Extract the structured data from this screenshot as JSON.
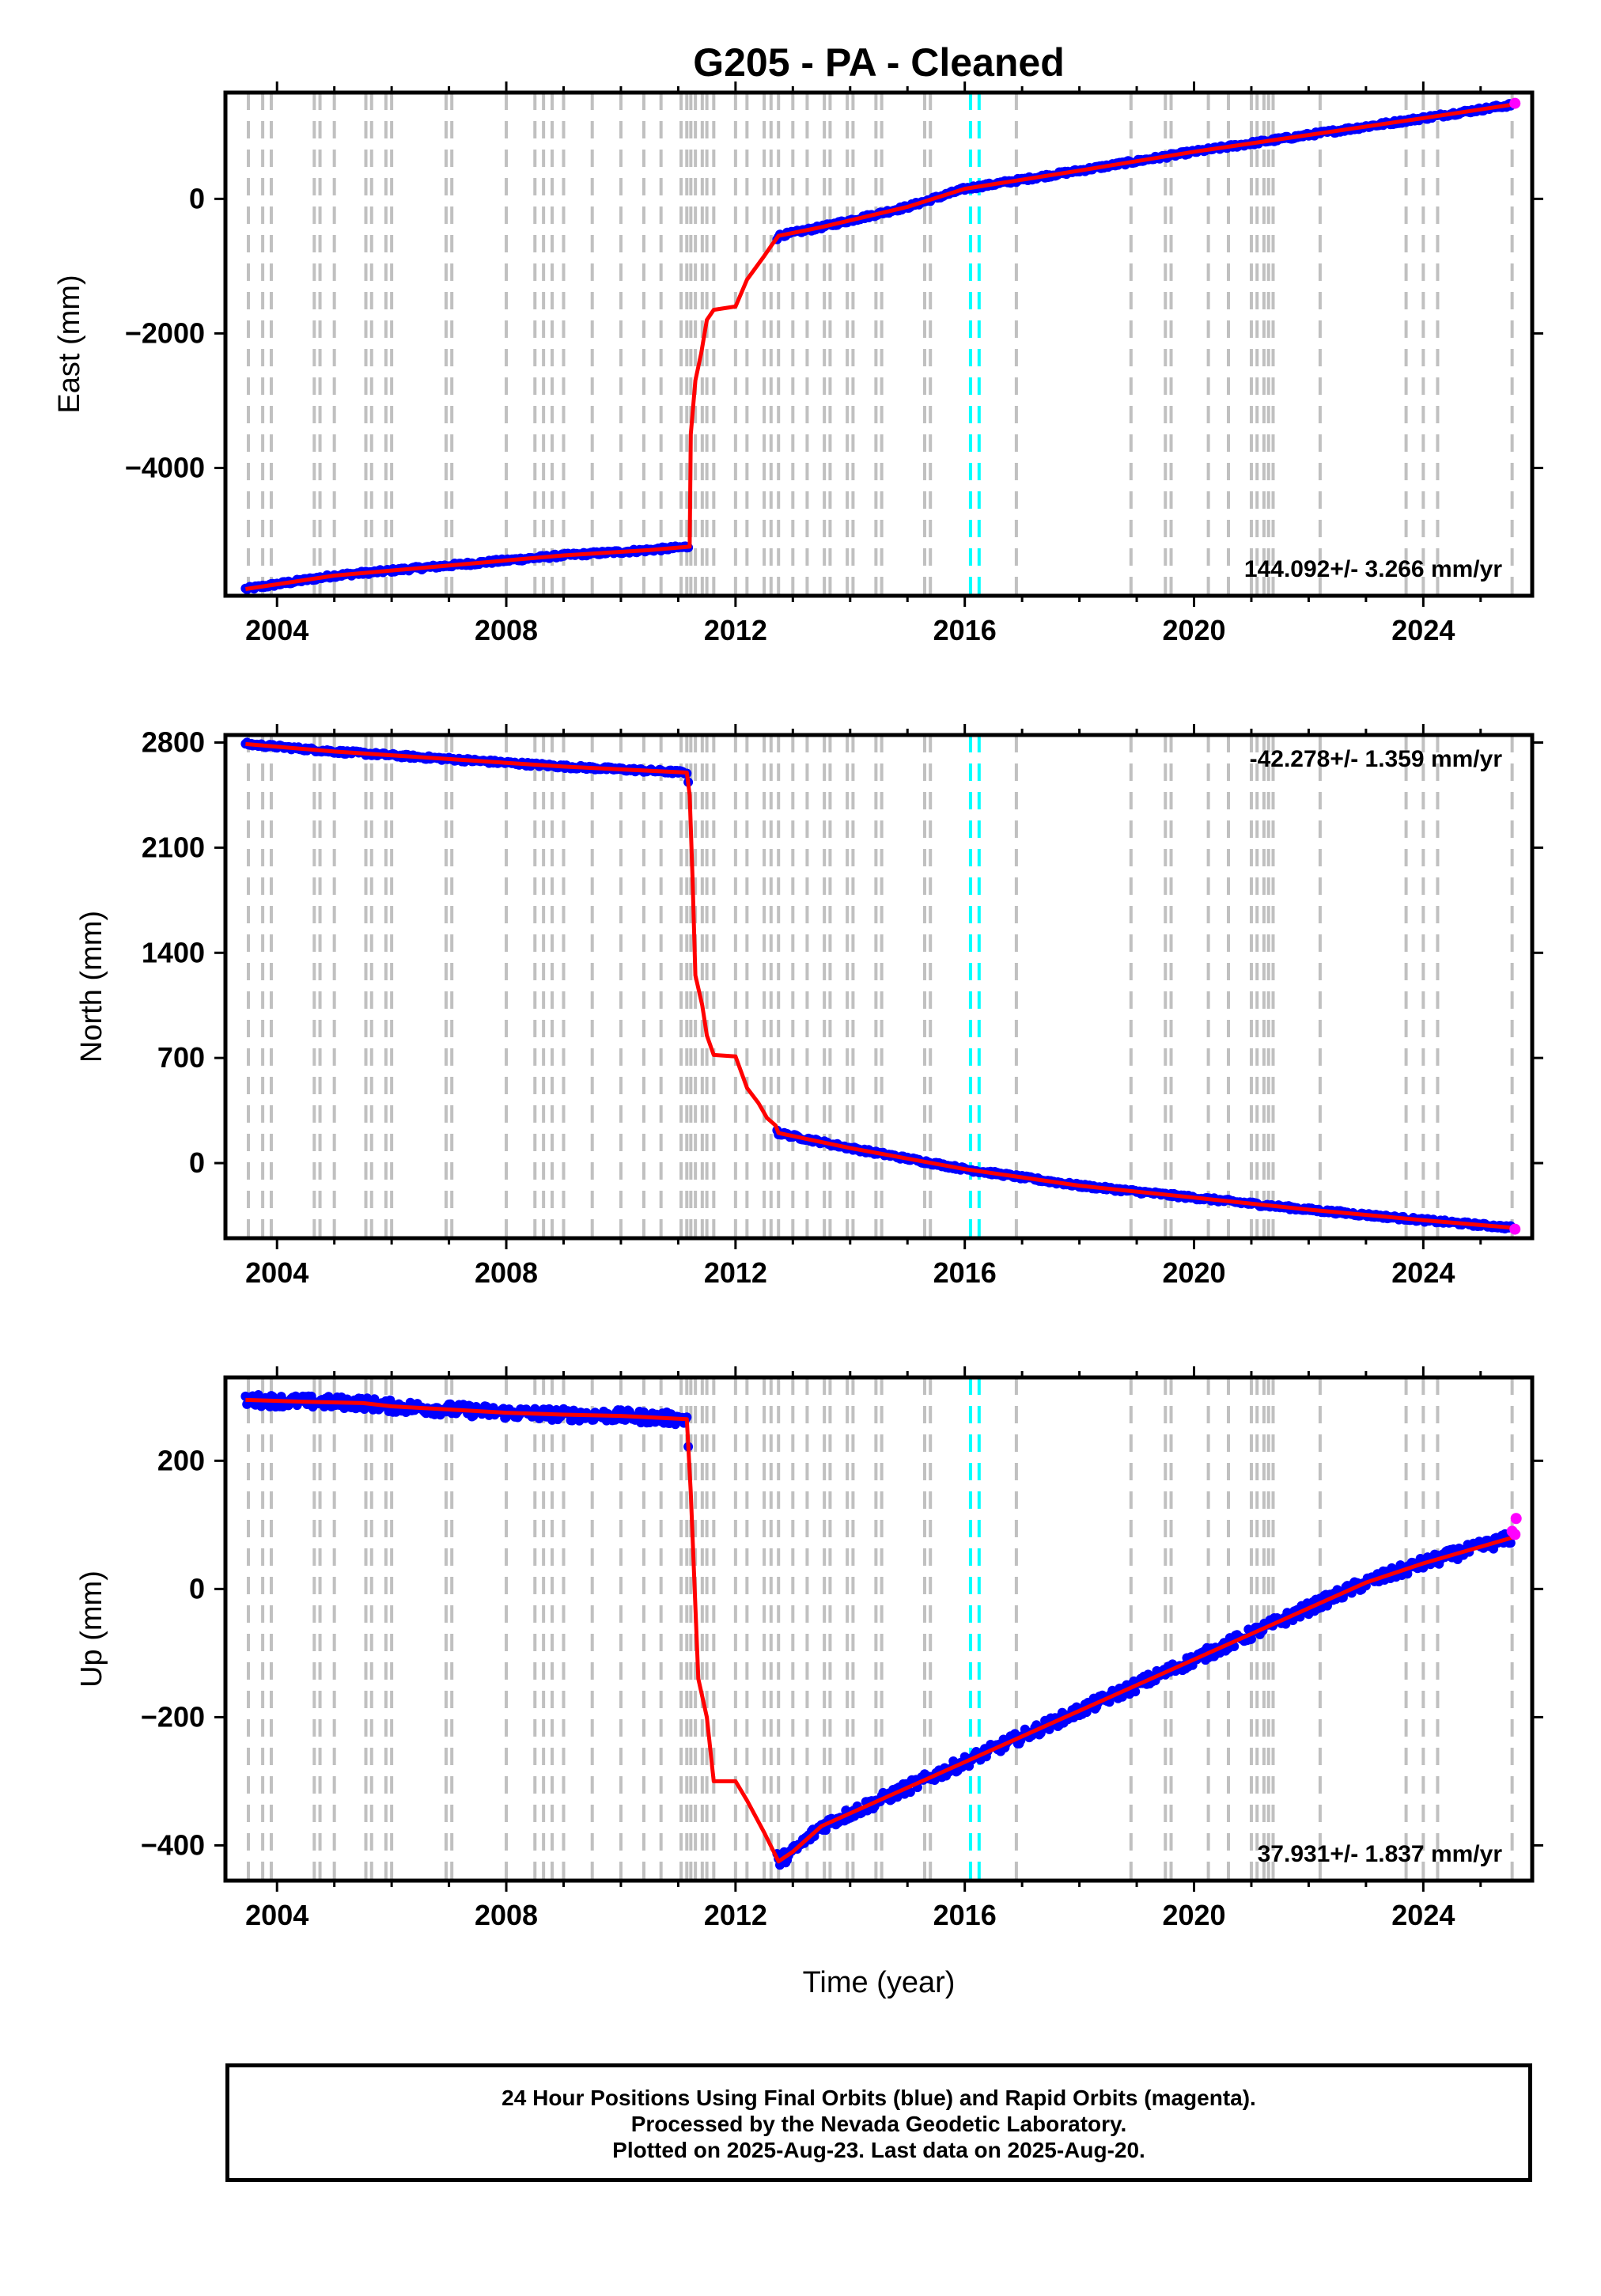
{
  "title": "G205  - PA - Cleaned",
  "xlabel": "Time (year)",
  "footer": {
    "line1": "24 Hour Positions Using Final Orbits (blue) and Rapid Orbits (magenta).",
    "line2": "Processed by the Nevada Geodetic Laboratory.",
    "line3": "Plotted on 2025-Aug-23. Last data on 2025-Aug-20."
  },
  "colors": {
    "final_orbits": "#0000ff",
    "rapid_orbits": "#ff00ff",
    "model": "#ff0000",
    "event_line": "#c0c0c0",
    "antenna_change_line": "#00ffff"
  },
  "event_years": [
    2003.5,
    2003.75,
    2003.9,
    2004.65,
    2004.75,
    2005.0,
    2005.55,
    2005.65,
    2005.9,
    2006.0,
    2006.95,
    2007.05,
    2008.0,
    2008.5,
    2008.65,
    2008.8,
    2009.0,
    2009.5,
    2010.0,
    2010.4,
    2010.7,
    2011.05,
    2011.15,
    2011.22,
    2011.3,
    2011.42,
    2011.5,
    2011.62,
    2012.0,
    2012.2,
    2012.5,
    2012.62,
    2012.75,
    2013.0,
    2013.25,
    2013.55,
    2013.65,
    2013.95,
    2014.05,
    2014.45,
    2014.55,
    2015.3,
    2015.4,
    2016.9,
    2018.9,
    2019.5,
    2019.6,
    2020.25,
    2020.6,
    2021.0,
    2021.1,
    2021.22,
    2021.3,
    2021.38,
    2022.2,
    2023.7,
    2024.0,
    2024.25,
    2025.55
  ],
  "cyan_years": [
    2016.1,
    2016.25
  ],
  "chart_data": [
    {
      "type": "scatter",
      "ylabel": "East (mm)",
      "xlim": [
        2003.1,
        2025.9
      ],
      "ylim": [
        -5900,
        1580
      ],
      "xticks": [
        2004,
        2008,
        2012,
        2016,
        2020,
        2024
      ],
      "yticks": [
        -4000,
        -2000,
        0
      ],
      "rate_label": "144.092+/- 3.266 mm/yr",
      "rate_position": "bottom-right",
      "series": [
        {
          "name": "Final Orbits",
          "x": [
            2003.45,
            2005.0,
            2007.0,
            2009.0,
            2010.5,
            2011.2,
            2011.22,
            2011.3,
            2011.4,
            2011.5,
            2011.62,
            2012.0,
            2012.2,
            2012.5,
            2012.62,
            2012.75,
            2013.5,
            2015.0,
            2016.0,
            2018.0,
            2020.0,
            2022.0,
            2024.0,
            2025.55
          ],
          "y": [
            -5800,
            -5600,
            -5450,
            -5300,
            -5220,
            -5170,
            -3500,
            -2700,
            -2300,
            -1800,
            -1650,
            -1600,
            -1200,
            -850,
            -700,
            -550,
            -420,
            -120,
            150,
            420,
            700,
            950,
            1200,
            1400
          ]
        },
        {
          "name": "Rapid Orbits",
          "x": [
            2025.6
          ],
          "y": [
            1420
          ]
        }
      ]
    },
    {
      "type": "scatter",
      "ylabel": "North (mm)",
      "xlim": [
        2003.1,
        2025.9
      ],
      "ylim": [
        -500,
        2850
      ],
      "xticks": [
        2004,
        2008,
        2012,
        2016,
        2020,
        2024
      ],
      "yticks": [
        0,
        700,
        1400,
        2100,
        2800
      ],
      "rate_label": "-42.278+/- 1.359 mm/yr",
      "rate_position": "top-right",
      "series": [
        {
          "name": "Final Orbits",
          "x": [
            2003.45,
            2005.0,
            2007.0,
            2009.0,
            2011.15,
            2011.2,
            2011.25,
            2011.3,
            2011.42,
            2011.5,
            2011.62,
            2012.0,
            2012.2,
            2012.4,
            2012.55,
            2012.7,
            2012.75,
            2014.0,
            2016.0,
            2018.0,
            2020.0,
            2022.0,
            2024.0,
            2025.55
          ],
          "y": [
            2790,
            2740,
            2690,
            2640,
            2600,
            2450,
            1900,
            1250,
            1050,
            850,
            720,
            710,
            500,
            400,
            300,
            250,
            200,
            100,
            -40,
            -150,
            -230,
            -310,
            -380,
            -430
          ]
        },
        {
          "name": "Rapid Orbits",
          "x": [
            2025.6
          ],
          "y": [
            -440
          ]
        }
      ]
    },
    {
      "type": "scatter",
      "ylabel": "Up (mm)",
      "xlim": [
        2003.1,
        2025.9
      ],
      "ylim": [
        -455,
        330
      ],
      "xticks": [
        2004,
        2008,
        2012,
        2016,
        2020,
        2024
      ],
      "yticks": [
        -400,
        -200,
        0,
        200
      ],
      "rate_label": "37.931+/- 1.837 mm/yr",
      "rate_position": "bottom-right",
      "series": [
        {
          "name": "Final Orbits",
          "x": [
            2003.45,
            2004.5,
            2005.5,
            2006.0,
            2007.0,
            2008.0,
            2009.0,
            2010.0,
            2011.15,
            2011.22,
            2011.35,
            2011.5,
            2011.62,
            2012.0,
            2012.2,
            2012.5,
            2012.75,
            2013.0,
            2013.5,
            2014.0,
            2015.0,
            2016.0,
            2017.0,
            2018.0,
            2019.0,
            2020.0,
            2021.0,
            2022.0,
            2023.0,
            2024.0,
            2025.55
          ],
          "y": [
            295,
            292,
            290,
            285,
            280,
            275,
            272,
            270,
            265,
            150,
            -140,
            -200,
            -300,
            -300,
            -330,
            -380,
            -425,
            -410,
            -370,
            -350,
            -310,
            -270,
            -230,
            -190,
            -150,
            -110,
            -70,
            -30,
            10,
            40,
            80
          ]
        },
        {
          "name": "Rapid Orbits",
          "x": [
            2025.55,
            2025.6,
            2025.62
          ],
          "y": [
            90,
            85,
            110
          ]
        }
      ]
    }
  ]
}
